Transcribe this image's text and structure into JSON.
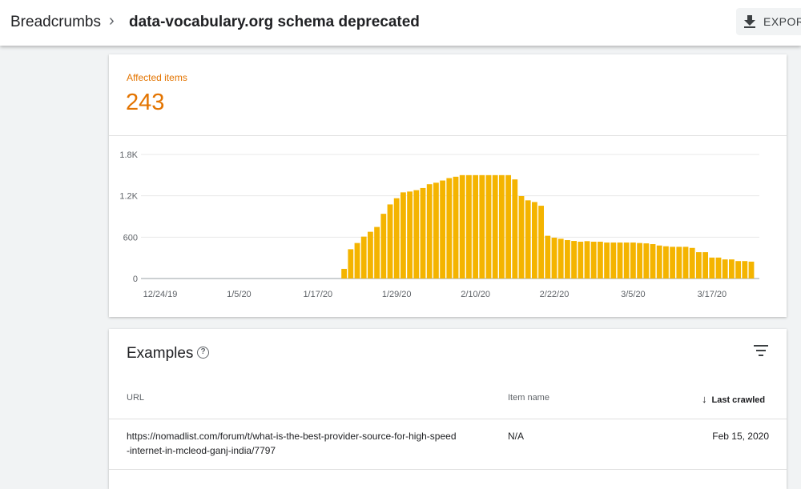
{
  "header": {
    "breadcrumb": "Breadcrumbs",
    "separator": "›",
    "title": "data-vocabulary.org schema deprecated",
    "export_label": "EXPOR",
    "export_icon": "download-icon"
  },
  "summary": {
    "label": "Affected items",
    "value": "243",
    "accent": "#e37400"
  },
  "chart_data": {
    "type": "bar",
    "title": "",
    "xlabel": "",
    "ylabel": "",
    "ylim": [
      0,
      1800
    ],
    "yticks": [
      "0",
      "600",
      "1.2K",
      "1.8K"
    ],
    "ytick_values": [
      0,
      600,
      1200,
      1800
    ],
    "xticks": [
      "12/24/19",
      "1/5/20",
      "1/17/20",
      "1/29/20",
      "2/10/20",
      "2/22/20",
      "3/5/20",
      "3/17/20"
    ],
    "x_start": "12/24/19",
    "bar_start_day_offset": 28,
    "bar_start_date": "1/21/20",
    "color": "#f4b400",
    "values": [
      140,
      425,
      515,
      608,
      678,
      748,
      939,
      1075,
      1165,
      1250,
      1262,
      1282,
      1313,
      1368,
      1390,
      1422,
      1457,
      1477,
      1500,
      1500,
      1500,
      1500,
      1500,
      1500,
      1500,
      1500,
      1438,
      1196,
      1134,
      1110,
      1056,
      620,
      592,
      577,
      557,
      545,
      534,
      542,
      534,
      534,
      522,
      522,
      522,
      522,
      522,
      515,
      510,
      499,
      479,
      468,
      460,
      460,
      460,
      444,
      382,
      382,
      304,
      304,
      277,
      277,
      253,
      253,
      245
    ]
  },
  "examples": {
    "title": "Examples",
    "help_icon": "help-icon",
    "filter_icon": "filter-icon",
    "columns": {
      "url": "URL",
      "item": "Item name",
      "crawled": "Last crawled"
    },
    "rows": [
      {
        "url_1": "https://nomadlist.com/forum/t/what-is-the-best-provider-source-for-high-speed",
        "url_2": "-internet-in-mcleod-ganj-india/7797",
        "item": "N/A",
        "crawled": "Feb 15, 2020"
      }
    ]
  }
}
